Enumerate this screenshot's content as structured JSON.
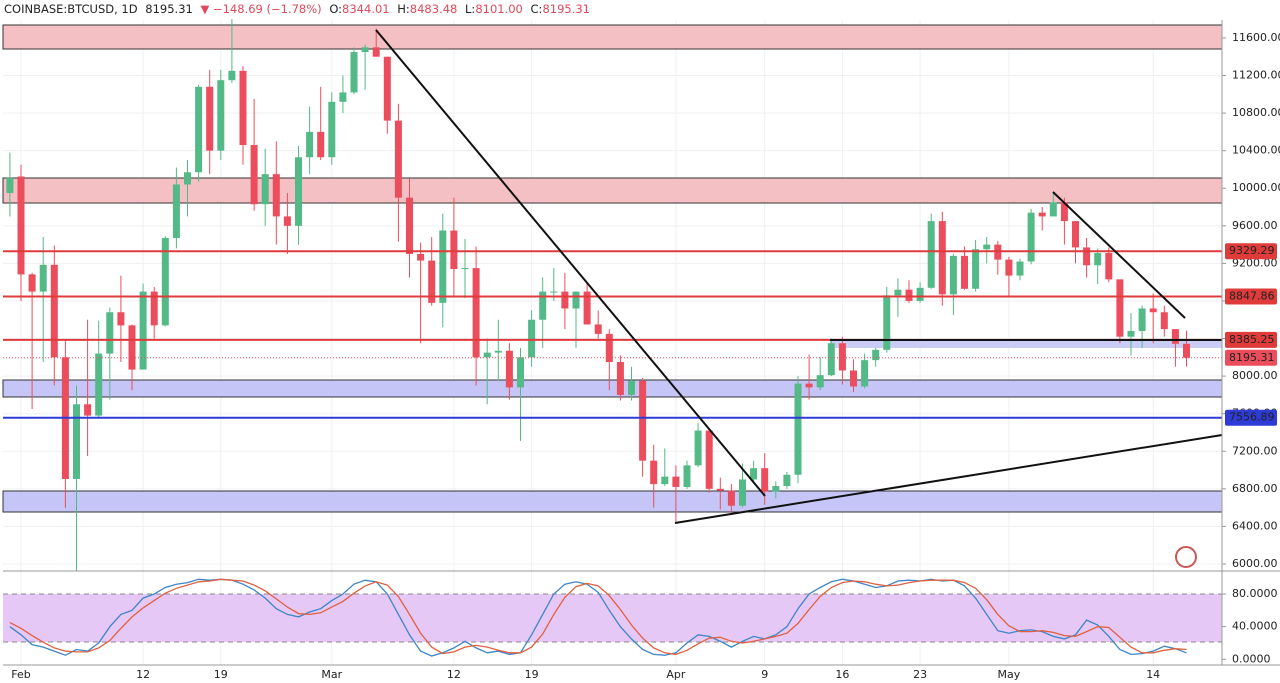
{
  "chart_data": {
    "type": "candlestick",
    "header": {
      "symbol": "COINBASE:BTCUSD, 1D",
      "last": "8195.31",
      "change": "▼ −148.69 (−1.78%)",
      "ohlc_labels": [
        "O:",
        "H:",
        "L:",
        "C:"
      ],
      "ohlc_values": [
        "8344.01",
        "8483.48",
        "8101.00",
        "8195.31"
      ]
    },
    "categories": [
      null,
      "Feb",
      null,
      null,
      null,
      null,
      null,
      null,
      null,
      null,
      null,
      null,
      "12",
      null,
      null,
      null,
      null,
      null,
      null,
      "19",
      null,
      null,
      null,
      null,
      null,
      null,
      null,
      null,
      null,
      "Mar",
      null,
      null,
      null,
      null,
      null,
      null,
      null,
      null,
      null,
      null,
      "12",
      null,
      null,
      null,
      null,
      null,
      null,
      "19",
      null,
      null,
      null,
      null,
      null,
      null,
      null,
      null,
      null,
      null,
      null,
      null,
      "Apr",
      null,
      null,
      null,
      null,
      null,
      null,
      null,
      "9",
      null,
      null,
      null,
      null,
      null,
      null,
      "16",
      null,
      null,
      null,
      null,
      null,
      null,
      "23",
      null,
      null,
      null,
      null,
      null,
      null,
      null,
      "May",
      null,
      null,
      null,
      null,
      null,
      null,
      null,
      null,
      null,
      null,
      null,
      null,
      "14",
      null,
      null,
      null
    ],
    "open": [
      9950,
      10125,
      9083,
      8900,
      9185,
      8200,
      6905,
      7700,
      7580,
      8240,
      8680,
      8540,
      8070,
      8900,
      8540,
      9470,
      10040,
      10170,
      11080,
      10400,
      11150,
      11250,
      10460,
      9830,
      10150,
      9700,
      9600,
      10330,
      10600,
      10330,
      10920,
      11020,
      11450,
      11500,
      11400,
      10720,
      9900,
      9300,
      9230,
      8780,
      9550,
      9140,
      9150,
      8200,
      8250,
      8270,
      7880,
      8200,
      8600,
      8900,
      8900,
      8720,
      8900,
      8550,
      8450,
      8150,
      7800,
      7950,
      7100,
      6850,
      6930,
      6820,
      7050,
      7420,
      6800,
      6780,
      6620,
      6900,
      7020,
      6770,
      6830,
      6950,
      7920,
      7880,
      8010,
      8350,
      8060,
      7890,
      8170,
      8280,
      8860,
      8920,
      8800,
      8940,
      9650,
      8870,
      9280,
      8930,
      9350,
      9400,
      9240,
      9070,
      9220,
      9740,
      9700,
      9850,
      9650,
      9370,
      9180,
      9310,
      9030,
      8420,
      8480,
      8720,
      8680,
      8500,
      8344.01
    ],
    "high": [
      10380,
      10250,
      9100,
      9480,
      9390,
      8390,
      7900,
      8600,
      8590,
      8730,
      9070,
      8550,
      8985,
      8950,
      9490,
      10220,
      10300,
      11100,
      11260,
      11260,
      11800,
      11300,
      10950,
      10420,
      10500,
      9950,
      10450,
      10870,
      11080,
      11020,
      11200,
      11500,
      11530,
      11700,
      11400,
      10900,
      10100,
      9420,
      9480,
      9730,
      9900,
      9460,
      9380,
      8400,
      8600,
      8350,
      8300,
      8700,
      9050,
      9150,
      9100,
      8900,
      9000,
      8700,
      8500,
      8220,
      8100,
      7980,
      7270,
      7230,
      7050,
      7100,
      7500,
      7430,
      6920,
      6850,
      7070,
      7100,
      7180,
      6880,
      6980,
      8000,
      8230,
      8200,
      8400,
      8420,
      8180,
      8240,
      8300,
      8950,
      9040,
      9020,
      9000,
      9730,
      9750,
      9300,
      9380,
      9450,
      9480,
      9440,
      9270,
      9250,
      9780,
      9800,
      9950,
      9900,
      9650,
      9470,
      9360,
      9370,
      9030,
      8670,
      8750,
      8880,
      8750,
      8500,
      8483.48
    ],
    "low": [
      9700,
      8800,
      7650,
      8150,
      7900,
      6600,
      5920,
      7150,
      7560,
      7750,
      8150,
      7850,
      8070,
      8400,
      8530,
      9360,
      9700,
      10070,
      10150,
      10300,
      11120,
      10250,
      9760,
      9600,
      9400,
      9300,
      9400,
      10150,
      10300,
      10250,
      10800,
      11000,
      11050,
      11400,
      10580,
      9430,
      9050,
      8350,
      8750,
      8520,
      8850,
      8830,
      7900,
      7700,
      7950,
      7750,
      7310,
      8100,
      8300,
      8800,
      8500,
      8300,
      8550,
      8400,
      7850,
      7740,
      7740,
      6930,
      6600,
      6830,
      6430,
      6800,
      7030,
      6760,
      6580,
      6520,
      6600,
      6880,
      6630,
      6700,
      6800,
      6860,
      7750,
      7850,
      8000,
      7910,
      7830,
      7870,
      8100,
      8250,
      8630,
      8780,
      8780,
      8930,
      8750,
      8650,
      8920,
      8900,
      9200,
      9080,
      8850,
      9020,
      9190,
      9550,
      9700,
      9400,
      9200,
      9050,
      8980,
      9000,
      8350,
      8220,
      8300,
      8350,
      8420,
      8100,
      8101
    ],
    "close": [
      10110,
      9083,
      8900,
      9185,
      8200,
      6905,
      7700,
      7580,
      8240,
      8680,
      8540,
      8070,
      8900,
      8540,
      9470,
      10040,
      10170,
      11080,
      10400,
      11150,
      11250,
      10460,
      9830,
      10150,
      9700,
      9600,
      10330,
      10600,
      10330,
      10920,
      11020,
      11450,
      11500,
      11400,
      10720,
      9900,
      9300,
      9230,
      8780,
      9550,
      9140,
      9150,
      8200,
      8250,
      8270,
      7880,
      8200,
      8600,
      8900,
      8900,
      8720,
      8900,
      8550,
      8450,
      8150,
      7800,
      7950,
      7100,
      6850,
      6930,
      6820,
      7050,
      7420,
      6800,
      6780,
      6620,
      6900,
      7020,
      6770,
      6830,
      6950,
      7920,
      7880,
      8010,
      8350,
      8060,
      7890,
      8170,
      8280,
      8860,
      8920,
      8800,
      8940,
      9650,
      8870,
      9280,
      8930,
      9350,
      9400,
      9240,
      9070,
      9220,
      9740,
      9700,
      9850,
      9650,
      9370,
      9180,
      9310,
      9030,
      8420,
      8480,
      8720,
      8680,
      8500,
      8344.01,
      8195.31
    ],
    "up_color": "#53b987",
    "down_color": "#eb4d5c",
    "ylim": [
      5936,
      11791
    ],
    "yticks": [
      {
        "value": 6000,
        "label": "6000.00"
      },
      {
        "value": 6400,
        "label": "6400.00"
      },
      {
        "value": 6800,
        "label": "6800.00"
      },
      {
        "value": 7200,
        "label": "7200.00"
      },
      {
        "value": 7600,
        "label": "7600.00"
      },
      {
        "value": 8000,
        "label": "8000.00"
      },
      {
        "value": 8400,
        "label": "8400.00"
      },
      {
        "value": 8800,
        "label": "8800.00"
      },
      {
        "value": 9200,
        "label": "9200.00"
      },
      {
        "value": 9600,
        "label": "9600.00"
      },
      {
        "value": 10000,
        "label": "10000.00"
      },
      {
        "value": 10400,
        "label": "10400.00"
      },
      {
        "value": 10800,
        "label": "10800.00"
      },
      {
        "value": 11200,
        "label": "11200.00"
      },
      {
        "value": 11600,
        "label": "11600.00"
      }
    ],
    "grid": true,
    "levels": [
      {
        "value": 9329.29,
        "color": "#e03b3b"
      },
      {
        "value": 8847.86,
        "color": "#e03b3b"
      },
      {
        "value": 8385.25,
        "color": "#e03b3b"
      },
      {
        "value": 8195.31,
        "color": "#eb4d5c",
        "dotted": true
      },
      {
        "value": 7556.89,
        "color": "#2e3bd6"
      }
    ],
    "oscillator": {
      "ylim": [
        -7,
        107
      ],
      "yticks": [
        {
          "value": 0,
          "label": "0.0000"
        },
        {
          "value": 40,
          "label": "40.0000"
        },
        {
          "value": 80,
          "label": "80.0000"
        }
      ],
      "series": [
        {
          "color": "#3d85c6",
          "values": [
            40,
            30,
            18,
            15,
            10,
            5,
            12,
            10,
            20,
            40,
            55,
            60,
            75,
            80,
            88,
            92,
            94,
            98,
            97,
            98,
            97,
            92,
            85,
            75,
            62,
            55,
            52,
            58,
            62,
            72,
            80,
            92,
            97,
            95,
            80,
            55,
            30,
            10,
            4,
            8,
            14,
            22,
            14,
            8,
            10,
            6,
            8,
            30,
            55,
            80,
            92,
            95,
            92,
            82,
            60,
            40,
            25,
            12,
            6,
            5,
            8,
            20,
            30,
            28,
            22,
            15,
            22,
            28,
            25,
            30,
            40,
            62,
            80,
            88,
            95,
            98,
            96,
            92,
            88,
            90,
            96,
            97,
            96,
            98,
            96,
            97,
            90,
            75,
            55,
            35,
            32,
            35,
            36,
            34,
            28,
            25,
            30,
            48,
            42,
            28,
            12,
            6,
            7,
            10,
            16,
            13,
            8
          ]
        },
        {
          "color": "#e06040",
          "values": [
            45,
            38,
            29,
            21,
            14,
            10,
            9,
            9,
            14,
            23,
            38,
            52,
            63,
            72,
            81,
            87,
            91,
            95,
            96,
            98,
            97,
            96,
            91,
            84,
            74,
            64,
            56,
            55,
            57,
            64,
            71,
            81,
            90,
            95,
            91,
            77,
            55,
            32,
            15,
            7,
            9,
            15,
            17,
            15,
            11,
            8,
            8,
            15,
            31,
            55,
            76,
            89,
            93,
            90,
            78,
            61,
            42,
            26,
            14,
            8,
            6,
            11,
            19,
            26,
            27,
            22,
            20,
            22,
            25,
            28,
            32,
            44,
            61,
            77,
            88,
            94,
            96,
            95,
            92,
            90,
            91,
            94,
            96,
            97,
            97,
            97,
            94,
            87,
            73,
            55,
            41,
            34,
            34,
            35,
            33,
            29,
            28,
            34,
            40,
            39,
            27,
            15,
            8,
            8,
            11,
            13,
            12
          ]
        }
      ]
    }
  }
}
